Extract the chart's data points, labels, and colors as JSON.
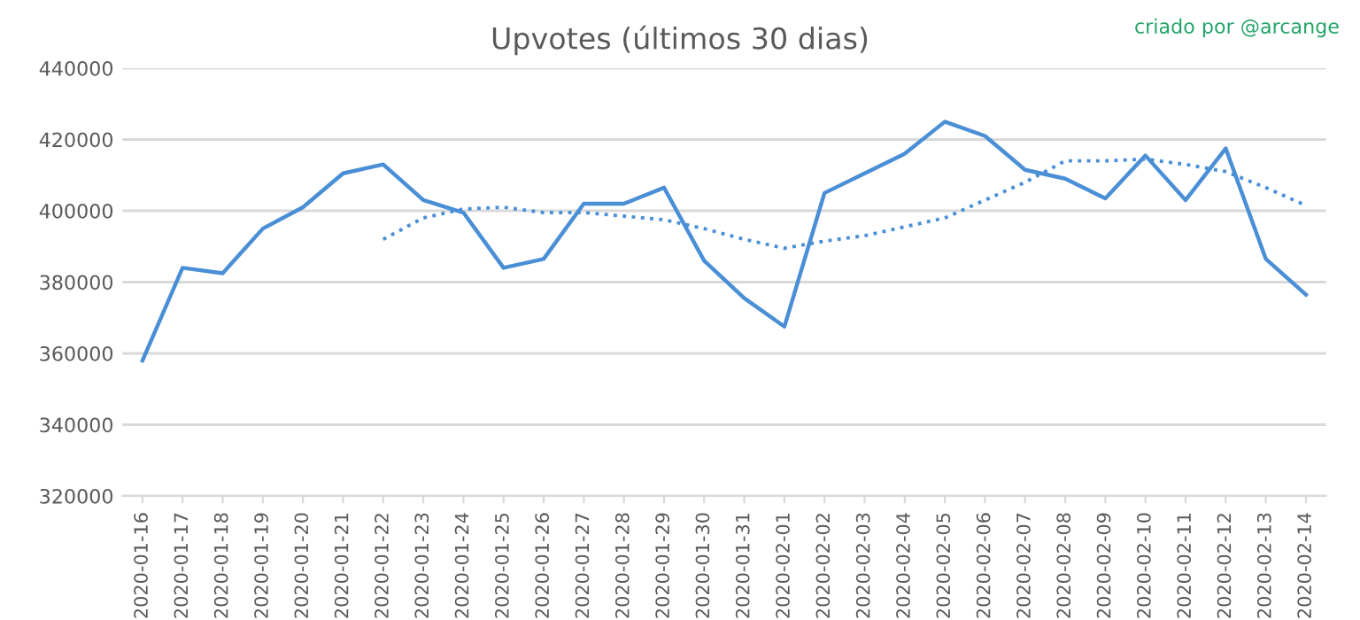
{
  "chart_data": {
    "type": "line",
    "title": "Upvotes (últimos 30 dias)",
    "annotations": [
      "criado por @arcange"
    ],
    "categories": [
      "2020-01-16",
      "2020-01-17",
      "2020-01-18",
      "2020-01-19",
      "2020-01-20",
      "2020-01-21",
      "2020-01-22",
      "2020-01-23",
      "2020-01-24",
      "2020-01-25",
      "2020-01-26",
      "2020-01-27",
      "2020-01-28",
      "2020-01-29",
      "2020-01-30",
      "2020-01-31",
      "2020-02-01",
      "2020-02-02",
      "2020-02-03",
      "2020-02-04",
      "2020-02-05",
      "2020-02-06",
      "2020-02-07",
      "2020-02-08",
      "2020-02-09",
      "2020-02-10",
      "2020-02-11",
      "2020-02-12",
      "2020-02-13",
      "2020-02-14"
    ],
    "series": [
      {
        "color": "#4a8fd6",
        "line_style": "solid",
        "values": [
          358000,
          384000,
          382500,
          395000,
          401000,
          410500,
          413000,
          403000,
          399500,
          384000,
          386500,
          402000,
          402000,
          406500,
          386000,
          375500,
          367500,
          405000,
          410500,
          416000,
          425000,
          421000,
          411500,
          409000,
          403500,
          415500,
          403000,
          417500,
          386500,
          376500
        ]
      },
      {
        "color": "#4a8fd6",
        "line_style": "dotted",
        "values": [
          null,
          null,
          null,
          null,
          null,
          null,
          392000,
          398000,
          400500,
          401000,
          399500,
          399500,
          398500,
          397500,
          395000,
          392000,
          389500,
          391500,
          393000,
          395500,
          398000,
          403000,
          408000,
          414000,
          414000,
          414500,
          413000,
          411000,
          406500,
          401500
        ]
      }
    ],
    "ylim": [
      320000,
      440000
    ],
    "yticks": [
      320000,
      340000,
      360000,
      380000,
      400000,
      420000,
      440000
    ],
    "grid": "y",
    "legend": false,
    "marker": "none"
  }
}
